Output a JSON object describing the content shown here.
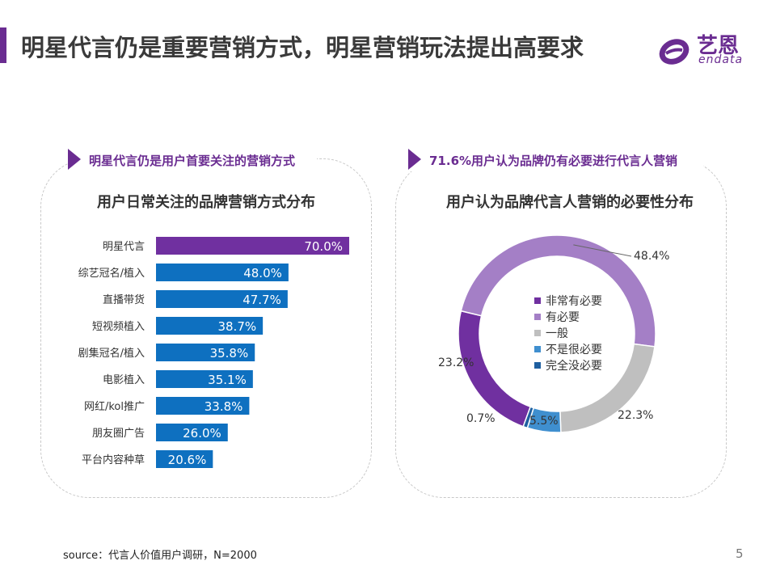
{
  "header": {
    "title": "明星代言仍是重要营销方式，明星营销玩法提出高要求",
    "logo_cn": "艺恩",
    "logo_en": "endata"
  },
  "left_panel": {
    "tag": "明星代言仍是用户首要关注的营销方式",
    "title": "用户日常关注的品牌营销方式分布"
  },
  "right_panel": {
    "tag": "71.6%用户认为品牌仍有必要进行代言人营销",
    "title": "用户认为品牌代言人营销的必要性分布"
  },
  "chart_data": [
    {
      "type": "bar",
      "orientation": "horizontal",
      "title": "用户日常关注的品牌营销方式分布",
      "categories": [
        "明星代言",
        "综艺冠名/植入",
        "直播带货",
        "短视频植入",
        "剧集冠名/植入",
        "电影植入",
        "网红/kol推广",
        "朋友圈广告",
        "平台内容种草"
      ],
      "values": [
        70.0,
        48.0,
        47.7,
        38.7,
        35.8,
        35.1,
        33.8,
        26.0,
        20.6
      ],
      "value_labels": [
        "70.0%",
        "48.0%",
        "47.7%",
        "38.7%",
        "35.8%",
        "35.1%",
        "33.8%",
        "26.0%",
        "20.6%"
      ],
      "colors": [
        "#7030a0",
        "#0e70c0",
        "#0e70c0",
        "#0e70c0",
        "#0e70c0",
        "#0e70c0",
        "#0e70c0",
        "#0e70c0",
        "#0e70c0"
      ],
      "xlim": [
        0,
        70
      ],
      "grid": false
    },
    {
      "type": "pie",
      "style": "donut",
      "title": "用户认为品牌代言人营销的必要性分布",
      "categories": [
        "非常有必要",
        "有必要",
        "一般",
        "不是很必要",
        "完全没必要"
      ],
      "values": [
        23.2,
        48.4,
        22.3,
        5.5,
        0.7
      ],
      "value_labels": [
        "23.2%",
        "48.4%",
        "22.3%",
        "5.5%",
        "0.7%"
      ],
      "colors": [
        "#7030a0",
        "#a47fc6",
        "#bfbfbf",
        "#3f8fcf",
        "#1f5fa0"
      ],
      "legend_position": "center"
    }
  ],
  "footer": {
    "source": "source：代言人价值用户调研，N=2000",
    "page_number": "5"
  }
}
